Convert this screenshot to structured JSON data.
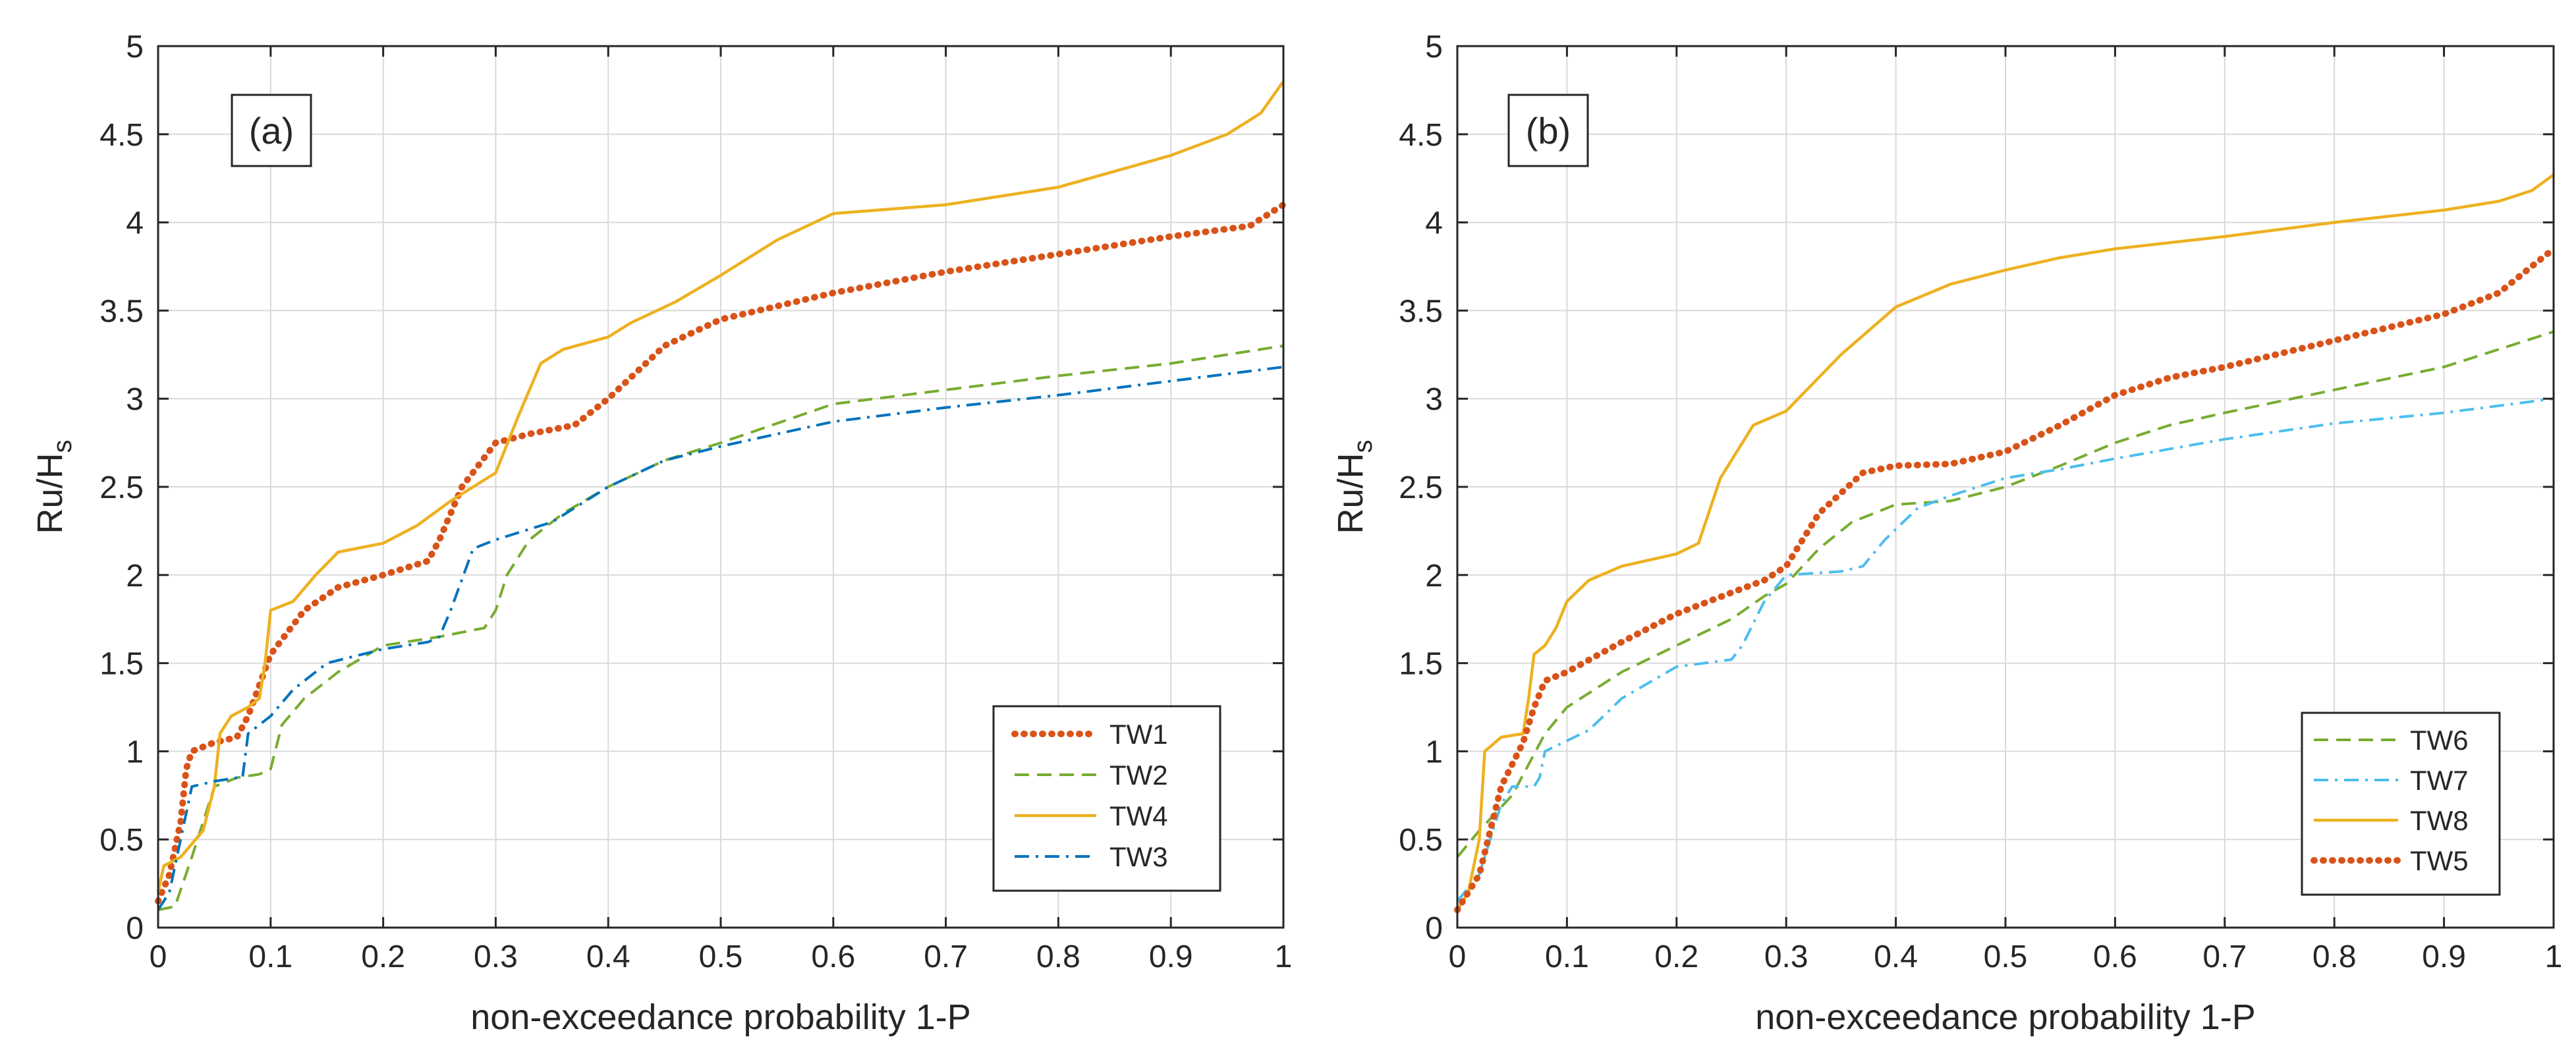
{
  "chart_data": [
    {
      "type": "line",
      "panel_label": "(a)",
      "title": "",
      "xlabel": "non-exceedance probability 1-P",
      "ylabel": "Ru/H",
      "ylabel_subscript": "s",
      "xlim": [
        0,
        1
      ],
      "ylim": [
        0,
        5
      ],
      "xticks": [
        "0",
        "0.1",
        "0.2",
        "0.3",
        "0.4",
        "0.5",
        "0.6",
        "0.7",
        "0.8",
        "0.9",
        "1"
      ],
      "yticks": [
        "0",
        "0.5",
        "1",
        "1.5",
        "2",
        "2.5",
        "3",
        "3.5",
        "4",
        "4.5",
        "5"
      ],
      "grid": true,
      "legend_position": "bottom-right",
      "series": [
        {
          "name": "TW1",
          "color": "#D95319",
          "style": "dotted",
          "x": [
            0,
            0.01,
            0.02,
            0.025,
            0.03,
            0.05,
            0.07,
            0.08,
            0.1,
            0.13,
            0.16,
            0.2,
            0.24,
            0.25,
            0.27,
            0.3,
            0.33,
            0.37,
            0.4,
            0.45,
            0.5,
            0.6,
            0.7,
            0.8,
            0.9,
            0.97,
            1.0
          ],
          "y": [
            0.15,
            0.3,
            0.6,
            0.9,
            1.0,
            1.05,
            1.08,
            1.2,
            1.55,
            1.8,
            1.93,
            2.0,
            2.08,
            2.2,
            2.5,
            2.75,
            2.8,
            2.85,
            3.0,
            3.3,
            3.45,
            3.6,
            3.72,
            3.82,
            3.92,
            3.98,
            4.1
          ]
        },
        {
          "name": "TW2",
          "color": "#77AC30",
          "style": "dashed",
          "x": [
            0,
            0.015,
            0.03,
            0.05,
            0.07,
            0.09,
            0.1,
            0.11,
            0.13,
            0.16,
            0.2,
            0.25,
            0.29,
            0.3,
            0.31,
            0.33,
            0.36,
            0.4,
            0.45,
            0.5,
            0.6,
            0.7,
            0.8,
            0.9,
            1.0
          ],
          "y": [
            0.1,
            0.12,
            0.4,
            0.8,
            0.85,
            0.87,
            0.9,
            1.15,
            1.3,
            1.45,
            1.6,
            1.65,
            1.7,
            1.8,
            2.0,
            2.2,
            2.35,
            2.5,
            2.65,
            2.75,
            2.97,
            3.05,
            3.13,
            3.2,
            3.3
          ]
        },
        {
          "name": "TW4",
          "color": "#EDB120",
          "style": "solid",
          "x": [
            0,
            0.005,
            0.02,
            0.04,
            0.05,
            0.055,
            0.065,
            0.08,
            0.09,
            0.095,
            0.1,
            0.12,
            0.14,
            0.16,
            0.2,
            0.23,
            0.26,
            0.3,
            0.32,
            0.34,
            0.36,
            0.4,
            0.42,
            0.46,
            0.5,
            0.55,
            0.6,
            0.7,
            0.8,
            0.9,
            0.95,
            0.98,
            1.0
          ],
          "y": [
            0.2,
            0.35,
            0.4,
            0.55,
            0.8,
            1.1,
            1.2,
            1.25,
            1.3,
            1.5,
            1.8,
            1.85,
            2.0,
            2.13,
            2.18,
            2.28,
            2.42,
            2.58,
            2.9,
            3.2,
            3.28,
            3.35,
            3.43,
            3.55,
            3.7,
            3.9,
            4.05,
            4.1,
            4.2,
            4.38,
            4.5,
            4.62,
            4.8
          ]
        },
        {
          "name": "TW3",
          "color": "#0072BD",
          "style": "dashdot",
          "x": [
            0,
            0.01,
            0.02,
            0.03,
            0.05,
            0.07,
            0.075,
            0.08,
            0.1,
            0.12,
            0.15,
            0.2,
            0.24,
            0.25,
            0.26,
            0.28,
            0.3,
            0.35,
            0.4,
            0.45,
            0.5,
            0.6,
            0.7,
            0.8,
            0.9,
            1.0
          ],
          "y": [
            0.1,
            0.2,
            0.5,
            0.8,
            0.83,
            0.85,
            0.85,
            1.1,
            1.2,
            1.35,
            1.5,
            1.58,
            1.62,
            1.65,
            1.8,
            2.15,
            2.2,
            2.3,
            2.5,
            2.65,
            2.73,
            2.87,
            2.95,
            3.02,
            3.1,
            3.18
          ]
        }
      ]
    },
    {
      "type": "line",
      "panel_label": "(b)",
      "title": "",
      "xlabel": "non-exceedance probability 1-P",
      "ylabel": "Ru/H",
      "ylabel_subscript": "s",
      "xlim": [
        0,
        1
      ],
      "ylim": [
        0,
        5
      ],
      "xticks": [
        "0",
        "0.1",
        "0.2",
        "0.3",
        "0.4",
        "0.5",
        "0.6",
        "0.7",
        "0.8",
        "0.9",
        "1"
      ],
      "yticks": [
        "0",
        "0.5",
        "1",
        "1.5",
        "2",
        "2.5",
        "3",
        "3.5",
        "4",
        "4.5",
        "5"
      ],
      "grid": true,
      "legend_position": "bottom-right",
      "series": [
        {
          "name": "TW6",
          "color": "#77AC30",
          "style": "dashed",
          "x": [
            0,
            0.02,
            0.05,
            0.08,
            0.1,
            0.15,
            0.2,
            0.25,
            0.28,
            0.3,
            0.33,
            0.36,
            0.4,
            0.45,
            0.5,
            0.55,
            0.6,
            0.65,
            0.7,
            0.8,
            0.9,
            1.0
          ],
          "y": [
            0.4,
            0.55,
            0.75,
            1.1,
            1.25,
            1.45,
            1.6,
            1.75,
            1.88,
            1.95,
            2.15,
            2.3,
            2.4,
            2.42,
            2.5,
            2.62,
            2.75,
            2.85,
            2.92,
            3.05,
            3.18,
            3.38
          ]
        },
        {
          "name": "TW7",
          "color": "#4DBEEE",
          "style": "dashdot",
          "x": [
            0,
            0.02,
            0.04,
            0.05,
            0.07,
            0.075,
            0.08,
            0.12,
            0.15,
            0.2,
            0.25,
            0.26,
            0.28,
            0.3,
            0.35,
            0.37,
            0.39,
            0.42,
            0.45,
            0.5,
            0.55,
            0.6,
            0.7,
            0.8,
            0.9,
            1.0
          ],
          "y": [
            0.15,
            0.3,
            0.7,
            0.8,
            0.8,
            0.85,
            1.0,
            1.12,
            1.3,
            1.48,
            1.52,
            1.6,
            1.85,
            2.0,
            2.02,
            2.05,
            2.2,
            2.38,
            2.45,
            2.55,
            2.6,
            2.66,
            2.77,
            2.86,
            2.92,
            3.0
          ]
        },
        {
          "name": "TW8",
          "color": "#EDB120",
          "style": "solid",
          "x": [
            0,
            0.01,
            0.02,
            0.025,
            0.04,
            0.06,
            0.065,
            0.07,
            0.08,
            0.09,
            0.1,
            0.12,
            0.15,
            0.2,
            0.22,
            0.24,
            0.27,
            0.3,
            0.35,
            0.4,
            0.45,
            0.5,
            0.55,
            0.6,
            0.7,
            0.8,
            0.9,
            0.95,
            0.98,
            1.0
          ],
          "y": [
            0.1,
            0.2,
            0.5,
            1.0,
            1.08,
            1.1,
            1.3,
            1.55,
            1.6,
            1.7,
            1.85,
            1.97,
            2.05,
            2.12,
            2.18,
            2.55,
            2.85,
            2.93,
            3.25,
            3.52,
            3.65,
            3.73,
            3.8,
            3.85,
            3.92,
            4.0,
            4.07,
            4.12,
            4.18,
            4.27
          ]
        },
        {
          "name": "TW5",
          "color": "#D95319",
          "style": "dotted",
          "x": [
            0,
            0.02,
            0.04,
            0.06,
            0.07,
            0.08,
            0.1,
            0.15,
            0.2,
            0.25,
            0.28,
            0.3,
            0.33,
            0.37,
            0.4,
            0.45,
            0.5,
            0.55,
            0.6,
            0.65,
            0.7,
            0.8,
            0.9,
            0.95,
            1.0
          ],
          "y": [
            0.1,
            0.3,
            0.8,
            1.05,
            1.25,
            1.4,
            1.45,
            1.62,
            1.78,
            1.9,
            1.97,
            2.05,
            2.35,
            2.58,
            2.62,
            2.63,
            2.7,
            2.85,
            3.02,
            3.12,
            3.18,
            3.33,
            3.48,
            3.6,
            3.85
          ]
        }
      ]
    }
  ]
}
